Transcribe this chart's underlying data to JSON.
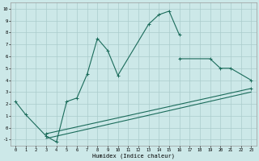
{
  "xlabel": "Humidex (Indice chaleur)",
  "bg_color": "#cce8e8",
  "grid_color": "#aacccc",
  "line_color": "#1a6b5a",
  "s1x": [
    0,
    1,
    3,
    4,
    5,
    6,
    7,
    8,
    9,
    10,
    13,
    14,
    15,
    16
  ],
  "s1y": [
    2.2,
    1.1,
    -0.7,
    -1.2,
    2.2,
    2.5,
    4.5,
    7.5,
    6.5,
    4.4,
    8.7,
    9.5,
    9.8,
    7.8
  ],
  "s2x": [
    16,
    19,
    20,
    21,
    23
  ],
  "s2y": [
    5.8,
    5.8,
    5.0,
    5.0,
    4.0
  ],
  "s3x": [
    3,
    23
  ],
  "s3y": [
    -0.5,
    3.3
  ],
  "s4x": [
    3,
    23
  ],
  "s4y": [
    -0.9,
    3.0
  ],
  "xlim": [
    -0.5,
    23.5
  ],
  "ylim": [
    -1.5,
    10.5
  ],
  "xticks": [
    0,
    1,
    2,
    3,
    4,
    5,
    6,
    7,
    8,
    9,
    10,
    11,
    12,
    13,
    14,
    15,
    16,
    17,
    18,
    19,
    20,
    21,
    22,
    23
  ],
  "yticks": [
    -1,
    0,
    1,
    2,
    3,
    4,
    5,
    6,
    7,
    8,
    9,
    10
  ]
}
